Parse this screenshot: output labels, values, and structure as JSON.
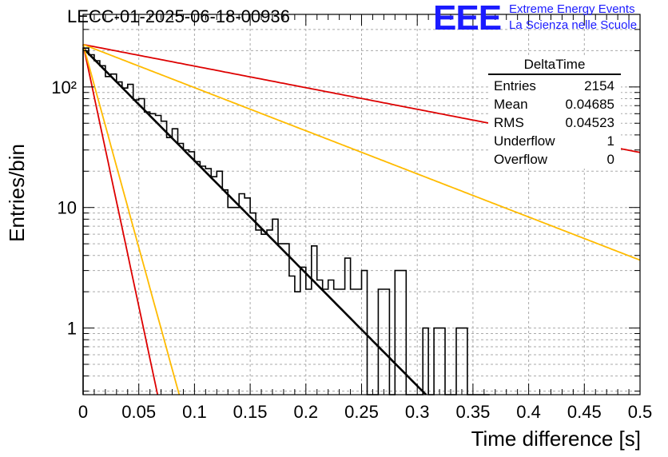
{
  "header": {
    "run_title": "LECC-01-2025-06-18-00936",
    "logo_text": "EEE",
    "logo_line1": "Extreme Energy Events",
    "logo_line2": "La Scienza nelle Scuole"
  },
  "stats_box": {
    "title": "DeltaTime",
    "rows": [
      {
        "label": "Entries",
        "value": "2154"
      },
      {
        "label": "Mean",
        "value": "0.04685"
      },
      {
        "label": "RMS",
        "value": "0.04523"
      },
      {
        "label": "Underflow",
        "value": "1"
      },
      {
        "label": "Overflow",
        "value": "0"
      }
    ]
  },
  "chart_data": {
    "type": "bar",
    "style": "step-histogram",
    "title": "LECC-01-2025-06-18-00936",
    "xlabel": "Time difference [s]",
    "ylabel": "Entries/bin",
    "xlim": [
      0,
      0.5
    ],
    "ylim": [
      0.28,
      400
    ],
    "y_scale": "log",
    "grid": true,
    "x_ticks": [
      "0",
      "0.05",
      "0.1",
      "0.15",
      "0.2",
      "0.25",
      "0.3",
      "0.35",
      "0.4",
      "0.45",
      "0.5"
    ],
    "y_ticks": [
      {
        "value": 1,
        "label": "1"
      },
      {
        "value": 10,
        "label": "10"
      },
      {
        "value": 100,
        "label": "10²"
      }
    ],
    "bin_width": 0.005,
    "histogram": [
      210,
      185,
      165,
      150,
      122,
      128,
      110,
      98,
      105,
      78,
      80,
      62,
      60,
      58,
      52,
      38,
      45,
      34,
      30,
      29,
      24,
      22,
      21,
      18,
      20,
      14,
      10,
      10,
      13,
      12,
      9,
      6.5,
      6,
      6.5,
      8,
      5,
      5,
      2.7,
      2,
      3.2,
      2.1,
      4.8,
      2.5,
      2.1,
      2.5,
      2.1,
      2.1,
      3.8,
      2.1,
      2.1,
      3.0,
      0,
      0,
      2.1,
      2.1,
      0,
      3.0,
      3.0,
      0,
      0,
      0,
      1.0,
      0,
      1.0,
      1.0,
      0,
      0,
      1.0,
      1.0,
      0,
      0,
      0,
      0
    ],
    "curves": [
      {
        "color": "#000000",
        "y0": 210,
        "tau": 0.0465
      },
      {
        "color": "#dd0000",
        "y0": 225,
        "tau": 0.2425
      },
      {
        "color": "#ffbb00",
        "y0": 225,
        "tau": 0.1214
      },
      {
        "color": "#dd0000",
        "y0": 225,
        "tau": 0.01
      },
      {
        "color": "#ffbb00",
        "y0": 225,
        "tau": 0.0129
      }
    ]
  }
}
